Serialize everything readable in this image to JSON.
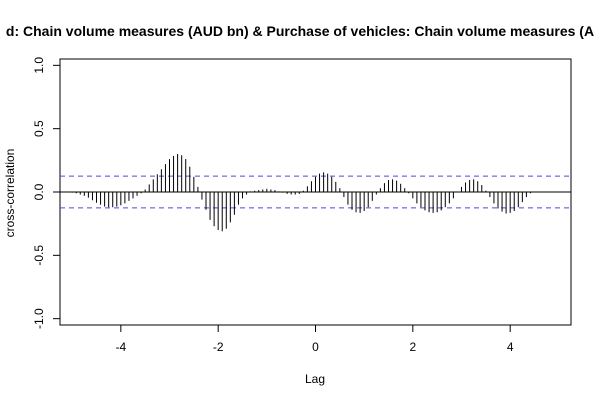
{
  "chart_data": {
    "type": "bar",
    "title": "d: Chain volume measures (AUD bn) & Purchase of vehicles: Chain volume measures (A",
    "xlabel": "Lag",
    "ylabel": "cross-correlation",
    "xlim": [
      -5.25,
      5.25
    ],
    "ylim": [
      -1.05,
      1.05
    ],
    "x_ticks": [
      -4,
      -2,
      0,
      2,
      4
    ],
    "y_ticks": [
      -1.0,
      -0.5,
      0.0,
      0.5,
      1.0
    ],
    "x_tick_labels": [
      "-4",
      "-2",
      "0",
      "2",
      "4"
    ],
    "y_tick_labels": [
      "-1.0",
      "-0.5",
      "0.0",
      "0.5",
      "1.0"
    ],
    "confidence_band": 0.125,
    "lags": [
      -5,
      -4.9167,
      -4.8333,
      -4.75,
      -4.6667,
      -4.5833,
      -4.5,
      -4.4167,
      -4.3333,
      -4.25,
      -4.1667,
      -4.0833,
      -4,
      -3.9167,
      -3.8333,
      -3.75,
      -3.6667,
      -3.5833,
      -3.5,
      -3.4167,
      -3.3333,
      -3.25,
      -3.1667,
      -3.0833,
      -3,
      -2.9167,
      -2.8333,
      -2.75,
      -2.6667,
      -2.5833,
      -2.5,
      -2.4167,
      -2.3333,
      -2.25,
      -2.1667,
      -2.0833,
      -2,
      -1.9167,
      -1.8333,
      -1.75,
      -1.6667,
      -1.5833,
      -1.5,
      -1.4167,
      -1.3333,
      -1.25,
      -1.1667,
      -1.0833,
      -1,
      -0.9167,
      -0.8333,
      -0.75,
      -0.6667,
      -0.5833,
      -0.5,
      -0.4167,
      -0.3333,
      -0.25,
      -0.1667,
      -0.0833,
      0,
      0.0833,
      0.1667,
      0.25,
      0.3333,
      0.4167,
      0.5,
      0.5833,
      0.6667,
      0.75,
      0.8333,
      0.9167,
      1,
      1.0833,
      1.1667,
      1.25,
      1.3333,
      1.4167,
      1.5,
      1.5833,
      1.6667,
      1.75,
      1.8333,
      1.9167,
      2,
      2.0833,
      2.1667,
      2.25,
      2.3333,
      2.4167,
      2.5,
      2.5833,
      2.6667,
      2.75,
      2.8333,
      2.9167,
      3,
      3.0833,
      3.1667,
      3.25,
      3.3333,
      3.4167,
      3.5,
      3.5833,
      3.6667,
      3.75,
      3.8333,
      3.9167,
      4,
      4.0833,
      4.1667,
      4.25,
      4.3333,
      4.4167,
      4.5,
      4.5833,
      4.6667,
      4.75,
      4.8333,
      4.9167,
      5
    ],
    "values": [
      -0.005,
      -0.01,
      -0.02,
      -0.03,
      -0.045,
      -0.065,
      -0.085,
      -0.1,
      -0.115,
      -0.12,
      -0.12,
      -0.115,
      -0.105,
      -0.09,
      -0.07,
      -0.05,
      -0.03,
      -0.01,
      0.02,
      0.06,
      0.1,
      0.14,
      0.18,
      0.22,
      0.26,
      0.285,
      0.3,
      0.29,
      0.26,
      0.2,
      0.12,
      0.04,
      -0.06,
      -0.14,
      -0.22,
      -0.27,
      -0.3,
      -0.31,
      -0.29,
      -0.24,
      -0.18,
      -0.1,
      -0.05,
      -0.02,
      0.005,
      0.01,
      0.015,
      0.02,
      0.025,
      0.02,
      0.015,
      0.005,
      -0.005,
      -0.015,
      -0.02,
      -0.02,
      -0.015,
      0.01,
      0.045,
      0.085,
      0.12,
      0.145,
      0.155,
      0.145,
      0.12,
      0.08,
      0.03,
      -0.04,
      -0.1,
      -0.14,
      -0.16,
      -0.165,
      -0.15,
      -0.12,
      -0.07,
      -0.02,
      0.03,
      0.07,
      0.095,
      0.1,
      0.09,
      0.065,
      0.03,
      -0.01,
      -0.05,
      -0.09,
      -0.12,
      -0.145,
      -0.16,
      -0.165,
      -0.16,
      -0.145,
      -0.12,
      -0.09,
      -0.05,
      0,
      0.04,
      0.075,
      0.095,
      0.1,
      0.085,
      0.055,
      0.01,
      -0.04,
      -0.09,
      -0.13,
      -0.155,
      -0.17,
      -0.165,
      -0.15,
      -0.12,
      -0.08,
      -0.04,
      -0.01,
      0,
      0,
      0,
      0,
      0,
      0,
      0
    ]
  }
}
